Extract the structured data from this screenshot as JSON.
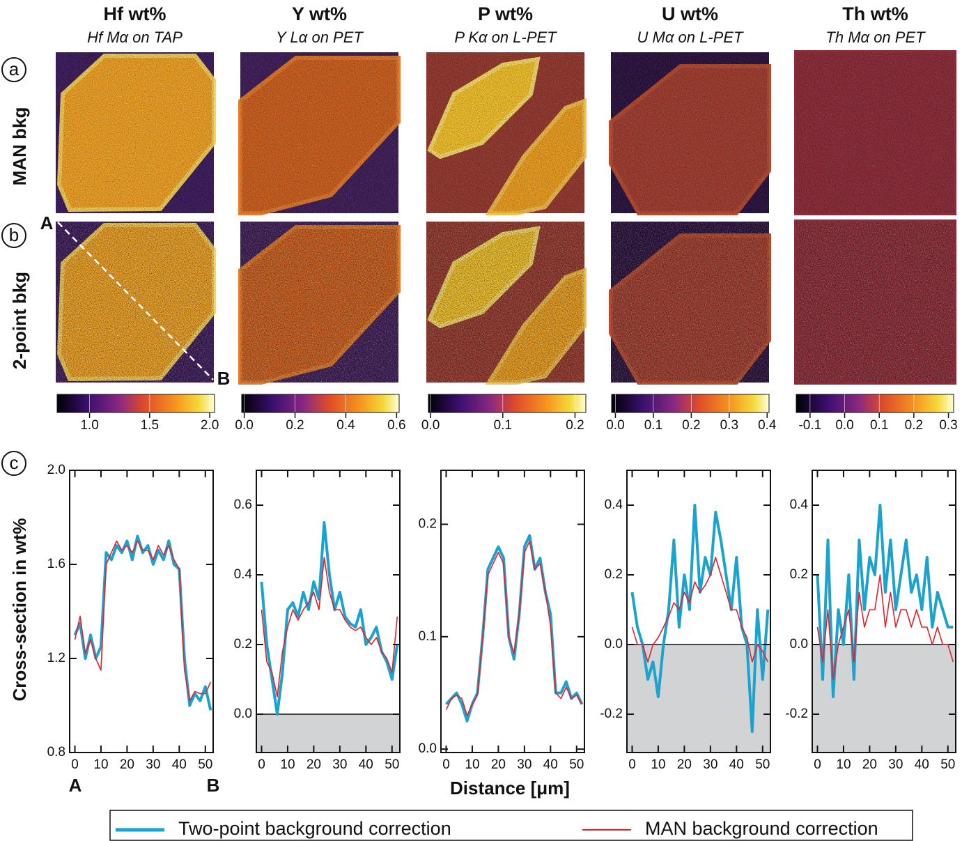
{
  "row_labels": [
    {
      "letter": "a",
      "label": "MAN bkg"
    },
    {
      "letter": "b",
      "label": "2-point bkg"
    }
  ],
  "panel_c_letter": "c",
  "profile_ends": [
    "A",
    "B"
  ],
  "y_label": "Cross-section in wt%",
  "x_label": "Distance [μm]",
  "chart_data": [
    {
      "type": "line",
      "title": "Hf wt%",
      "subtitle": "Hf Mα on TAP",
      "colorbar": {
        "lim": [
          0.73,
          2.04
        ],
        "ticks": [
          {
            "value": 1,
            "label": "1.0"
          },
          1.5,
          {
            "value": 2,
            "label": "2.0"
          }
        ]
      },
      "x": [
        0,
        2,
        4,
        6,
        8,
        10,
        12,
        14,
        16,
        18,
        20,
        22,
        24,
        26,
        28,
        30,
        32,
        34,
        36,
        38,
        40,
        42,
        44,
        46,
        48,
        50,
        52
      ],
      "xlim": [
        -2,
        53
      ],
      "xticks": [
        0,
        10,
        20,
        30,
        40,
        50
      ],
      "ylim": [
        0.8,
        2.0
      ],
      "yticks": [
        0.8,
        1.2,
        1.6,
        {
          "value": 2,
          "label": "2.0"
        }
      ],
      "shade_below_zero": false,
      "series": [
        {
          "name": "Two-point background correction",
          "color": "#1ba3cf",
          "values": [
            1.3,
            1.35,
            1.2,
            1.3,
            1.2,
            1.25,
            1.65,
            1.62,
            1.68,
            1.65,
            1.7,
            1.62,
            1.72,
            1.65,
            1.68,
            1.6,
            1.66,
            1.62,
            1.7,
            1.6,
            1.58,
            1.2,
            1.0,
            1.05,
            1.02,
            1.08,
            0.98
          ]
        },
        {
          "name": "MAN background correction",
          "color": "#e8202a",
          "values": [
            1.28,
            1.38,
            1.22,
            1.28,
            1.2,
            1.15,
            1.6,
            1.65,
            1.7,
            1.66,
            1.68,
            1.65,
            1.7,
            1.66,
            1.66,
            1.62,
            1.68,
            1.64,
            1.68,
            1.62,
            1.58,
            1.15,
            1.02,
            1.06,
            1.05,
            1.05,
            1.1
          ]
        }
      ]
    },
    {
      "type": "line",
      "title": "Y wt%",
      "subtitle": "Y Lα on PET",
      "colorbar": {
        "lim": [
          -0.01,
          0.61
        ],
        "ticks": [
          {
            "value": 0,
            "label": "0.0"
          },
          0.2,
          0.4,
          0.6
        ]
      },
      "x": [
        0,
        2,
        4,
        6,
        8,
        10,
        12,
        14,
        16,
        18,
        20,
        22,
        24,
        26,
        28,
        30,
        32,
        34,
        36,
        38,
        40,
        42,
        44,
        46,
        48,
        50,
        52
      ],
      "xlim": [
        -2,
        53
      ],
      "xticks": [
        0,
        10,
        20,
        30,
        40,
        50
      ],
      "ylim": [
        -0.11,
        0.7
      ],
      "yticks": [
        {
          "value": 0,
          "label": "0.0"
        },
        0.2,
        0.4,
        0.6
      ],
      "shade_below_zero": true,
      "series": [
        {
          "color": "#1ba3cf",
          "values": [
            0.38,
            0.2,
            0.1,
            0.0,
            0.12,
            0.3,
            0.32,
            0.28,
            0.35,
            0.3,
            0.38,
            0.33,
            0.55,
            0.4,
            0.3,
            0.35,
            0.28,
            0.26,
            0.25,
            0.3,
            0.2,
            0.22,
            0.25,
            0.18,
            0.15,
            0.1,
            0.2
          ]
        },
        {
          "color": "#e8202a",
          "values": [
            0.3,
            0.15,
            0.12,
            0.05,
            0.18,
            0.25,
            0.3,
            0.27,
            0.3,
            0.32,
            0.35,
            0.3,
            0.45,
            0.35,
            0.3,
            0.3,
            0.27,
            0.25,
            0.24,
            0.25,
            0.22,
            0.2,
            0.22,
            0.18,
            0.16,
            0.12,
            0.28
          ]
        }
      ]
    },
    {
      "type": "line",
      "title": "P wt%",
      "subtitle": "P Kα on L-PET",
      "colorbar": {
        "lim": [
          -0.003,
          0.215
        ],
        "ticks": [
          {
            "value": 0,
            "label": "0.0"
          },
          0.1,
          0.2
        ]
      },
      "x": [
        0,
        2,
        4,
        6,
        8,
        10,
        12,
        14,
        16,
        18,
        20,
        22,
        24,
        26,
        28,
        30,
        32,
        34,
        36,
        38,
        40,
        42,
        44,
        46,
        48,
        50,
        52
      ],
      "xlim": [
        -2,
        53
      ],
      "xticks": [
        0,
        10,
        20,
        30,
        40,
        50
      ],
      "ylim": [
        -0.003,
        0.248
      ],
      "yticks": [
        {
          "value": 0,
          "label": "0.0"
        },
        0.1,
        0.2
      ],
      "shade_below_zero": false,
      "series": [
        {
          "color": "#1ba3cf",
          "values": [
            0.04,
            0.045,
            0.05,
            0.04,
            0.025,
            0.04,
            0.05,
            0.1,
            0.16,
            0.17,
            0.18,
            0.17,
            0.1,
            0.08,
            0.12,
            0.18,
            0.19,
            0.16,
            0.17,
            0.14,
            0.12,
            0.05,
            0.05,
            0.06,
            0.045,
            0.05,
            0.04
          ]
        },
        {
          "color": "#e8202a",
          "values": [
            0.035,
            0.045,
            0.048,
            0.045,
            0.03,
            0.04,
            0.048,
            0.1,
            0.155,
            0.165,
            0.175,
            0.165,
            0.1,
            0.085,
            0.12,
            0.175,
            0.185,
            0.16,
            0.165,
            0.14,
            0.11,
            0.05,
            0.045,
            0.055,
            0.045,
            0.048,
            0.04
          ]
        }
      ]
    },
    {
      "type": "line",
      "title": "U wt%",
      "subtitle": "U Mα on L-PET",
      "colorbar": {
        "lim": [
          -0.01,
          0.405
        ],
        "ticks": [
          {
            "value": 0,
            "label": "0.0"
          },
          0.1,
          0.2,
          0.3,
          0.4
        ]
      },
      "x": [
        0,
        2,
        4,
        6,
        8,
        10,
        12,
        14,
        16,
        18,
        20,
        22,
        24,
        26,
        28,
        30,
        32,
        34,
        36,
        38,
        40,
        42,
        44,
        46,
        48,
        50,
        52
      ],
      "xlim": [
        -2,
        53
      ],
      "xticks": [
        0,
        10,
        20,
        30,
        40,
        50
      ],
      "ylim": [
        -0.31,
        0.5
      ],
      "yticks": [
        -0.2,
        {
          "value": 0,
          "label": "0.0"
        },
        0.2,
        0.4
      ],
      "shade_below_zero": true,
      "series": [
        {
          "color": "#1ba3cf",
          "values": [
            0.15,
            0.05,
            0.0,
            -0.1,
            -0.05,
            -0.15,
            0.0,
            0.1,
            0.3,
            0.05,
            0.2,
            0.1,
            0.4,
            0.15,
            0.25,
            0.2,
            0.38,
            0.3,
            0.2,
            0.1,
            0.25,
            0.05,
            0.0,
            -0.25,
            0.1,
            -0.1,
            0.1
          ]
        },
        {
          "color": "#e8202a",
          "values": [
            0.05,
            0.0,
            0.0,
            -0.05,
            0.0,
            0.02,
            0.05,
            0.08,
            0.12,
            0.1,
            0.15,
            0.12,
            0.18,
            0.15,
            0.17,
            0.2,
            0.25,
            0.2,
            0.15,
            0.1,
            0.1,
            0.05,
            0.02,
            -0.05,
            0.0,
            -0.02,
            -0.05
          ]
        }
      ]
    },
    {
      "type": "line",
      "title": "Th wt%",
      "subtitle": "Th Mα on PET",
      "colorbar": {
        "lim": [
          -0.14,
          0.315
        ],
        "ticks": [
          -0.1,
          {
            "value": 0,
            "label": "0.0"
          },
          0.1,
          0.2,
          0.3
        ]
      },
      "x": [
        0,
        2,
        4,
        6,
        8,
        10,
        12,
        14,
        16,
        18,
        20,
        22,
        24,
        26,
        28,
        30,
        32,
        34,
        36,
        38,
        40,
        42,
        44,
        46,
        48,
        50,
        52
      ],
      "xlim": [
        -2,
        53
      ],
      "xticks": [
        0,
        10,
        20,
        30,
        40,
        50
      ],
      "ylim": [
        -0.31,
        0.5
      ],
      "yticks": [
        -0.2,
        {
          "value": 0,
          "label": "0.0"
        },
        0.2,
        0.4
      ],
      "shade_below_zero": true,
      "series": [
        {
          "color": "#1ba3cf",
          "values": [
            0.2,
            -0.1,
            0.3,
            -0.15,
            0.1,
            0.0,
            0.2,
            -0.1,
            0.3,
            0.1,
            0.25,
            0.2,
            0.4,
            0.15,
            0.3,
            0.1,
            0.2,
            0.3,
            0.15,
            0.2,
            0.1,
            0.25,
            0.05,
            0.15,
            0.1,
            0.05,
            0.05
          ]
        },
        {
          "color": "#e8202a",
          "values": [
            0.05,
            -0.05,
            0.1,
            -0.1,
            0.0,
            0.05,
            0.1,
            -0.05,
            0.15,
            0.05,
            0.1,
            0.1,
            0.2,
            0.05,
            0.15,
            0.05,
            0.1,
            0.1,
            0.05,
            0.1,
            0.05,
            0.05,
            0.0,
            0.05,
            0.0,
            0.0,
            -0.05
          ]
        }
      ]
    }
  ]
}
